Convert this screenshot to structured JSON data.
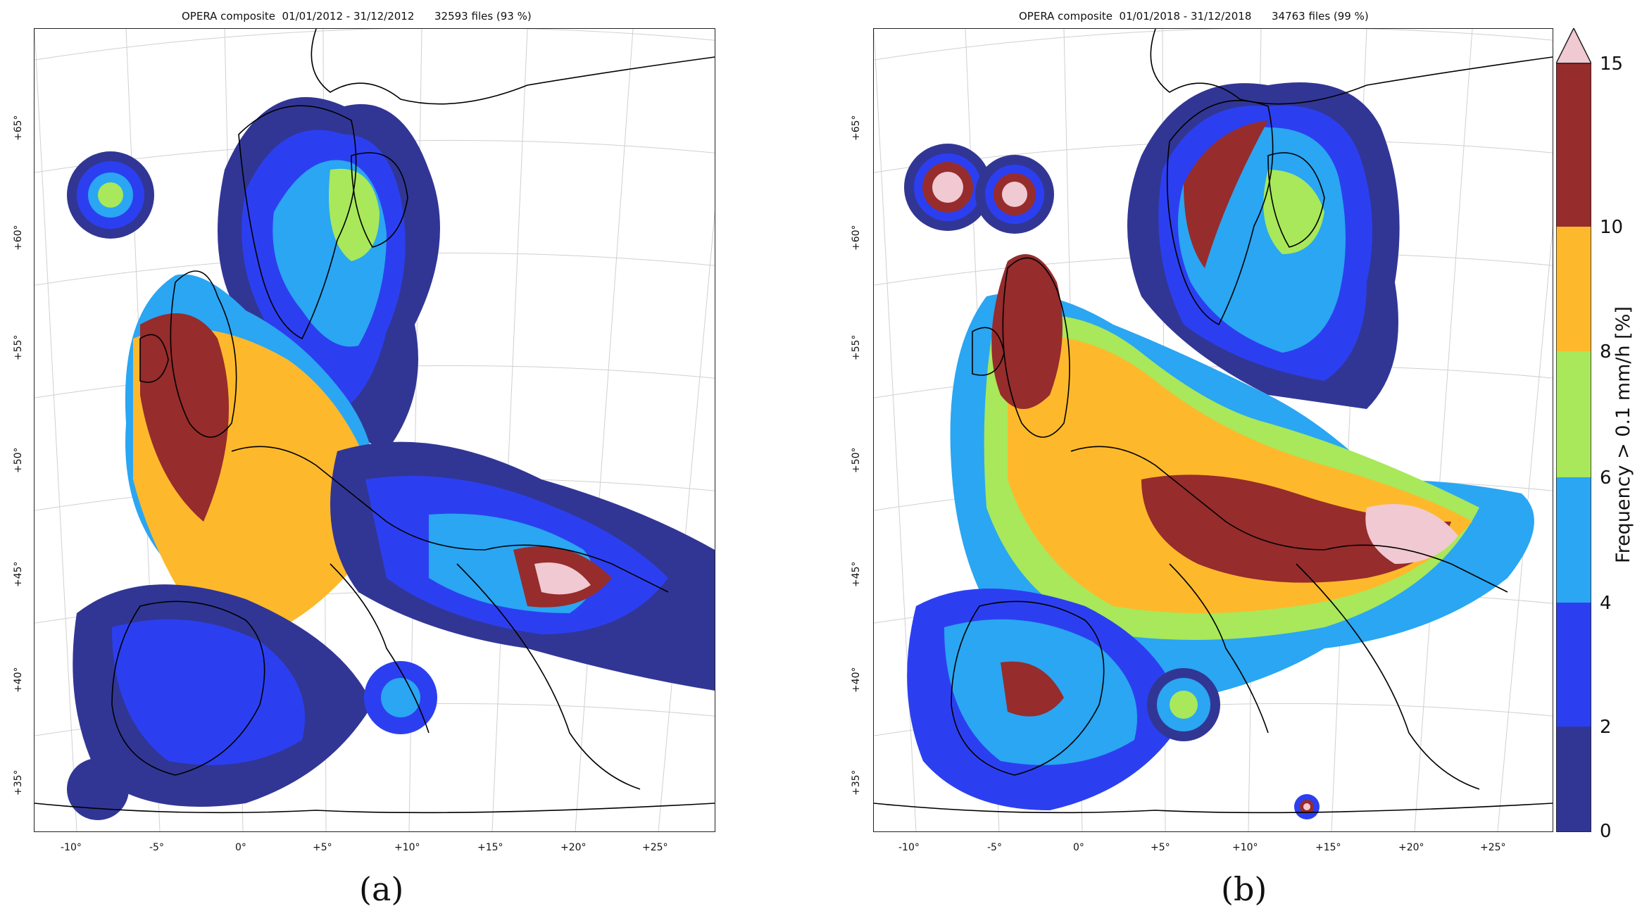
{
  "panels": [
    {
      "id": "a",
      "title": "OPERA composite  01/01/2012 - 31/12/2012      32593 files (93 %)",
      "label": "(a)"
    },
    {
      "id": "b",
      "title": "OPERA composite  01/01/2018 - 31/12/2018      34763 files (99 %)",
      "label": "(b)"
    }
  ],
  "lat_ticks": [
    "+65°",
    "+60°",
    "+55°",
    "+50°",
    "+45°",
    "+40°",
    "+35°"
  ],
  "lon_ticks": [
    "-10°",
    "-5°",
    "0°",
    "+5°",
    "+10°",
    "+15°",
    "+20°",
    "+25°"
  ],
  "colorbar": {
    "label": "Frequency > 0.1 mm/h [%]",
    "ticks": [
      "15",
      "10",
      "8",
      "6",
      "4",
      "2",
      "0"
    ],
    "bands": [
      {
        "from": 0,
        "to": 2,
        "color": "#313695"
      },
      {
        "from": 2,
        "to": 4,
        "color": "#2c3ff0"
      },
      {
        "from": 4,
        "to": 6,
        "color": "#2aa6f2"
      },
      {
        "from": 6,
        "to": 8,
        "color": "#a8e85a"
      },
      {
        "from": 8,
        "to": 10,
        "color": "#fdb92b"
      },
      {
        "from": 10,
        "to": 15,
        "color": "#962c2c"
      },
      {
        "from": 15,
        "to": null,
        "color": "#f0c9d2"
      }
    ]
  },
  "colors": {
    "c0": "#313695",
    "c2": "#2c3ff0",
    "c4": "#2aa6f2",
    "c6": "#a8e85a",
    "c8": "#fdb92b",
    "c10": "#962c2c",
    "c15": "#f0c9d2"
  }
}
